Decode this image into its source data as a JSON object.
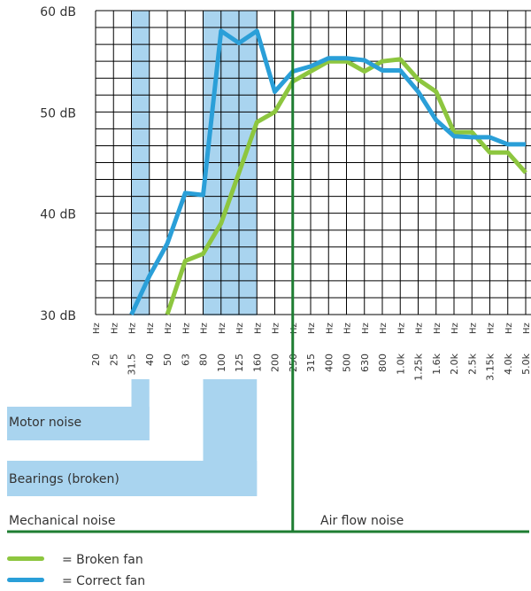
{
  "chart_data": {
    "type": "line",
    "x": [
      "20",
      "25",
      "31.5",
      "40",
      "50",
      "63",
      "80",
      "100",
      "125",
      "160",
      "200",
      "250",
      "315",
      "400",
      "500",
      "630",
      "800",
      "1.0k",
      "1.25k",
      "1.6k",
      "2.0k",
      "2.5k",
      "3.15k",
      "4.0k",
      "5.0k"
    ],
    "x_unit": "Hz",
    "ylim": [
      30,
      60
    ],
    "y_ticks": [
      {
        "value": 30,
        "label": "30 dB"
      },
      {
        "value": 40,
        "label": "40 dB"
      },
      {
        "value": 50,
        "label": "50 dB"
      },
      {
        "value": 60,
        "label": "60 dB"
      }
    ],
    "grid": true,
    "series": [
      {
        "name": "Broken fan",
        "color": "#8dc63f",
        "values": [
          null,
          null,
          null,
          null,
          30,
          35.3,
          36,
          39,
          44,
          49,
          50,
          53,
          54,
          55,
          55,
          54,
          55,
          55.2,
          53.2,
          52,
          48,
          48,
          46,
          46,
          44
        ]
      },
      {
        "name": "Correct fan",
        "color": "#2a9fd8",
        "values": [
          null,
          null,
          30,
          33.8,
          37,
          42,
          41.8,
          58,
          56.8,
          58,
          52,
          54,
          54.5,
          55.3,
          55.3,
          55.1,
          54.1,
          54.1,
          52,
          49.2,
          47.6,
          47.5,
          47.5,
          46.8,
          46.8
        ]
      }
    ],
    "divider_after": "250"
  },
  "bands": {
    "motor": {
      "label": "Motor noise",
      "x": [
        "40"
      ]
    },
    "bearings": {
      "label": "Bearings (broken)",
      "x": [
        "100",
        "125",
        "160"
      ]
    }
  },
  "sections": {
    "mechanical": "Mechanical noise",
    "airflow": "Air flow noise"
  },
  "legend": {
    "broken": "= Broken fan",
    "correct": "= Correct fan"
  },
  "colors": {
    "broken": "#8dc63f",
    "correct": "#2a9fd8",
    "band": "#a9d4ef",
    "divider": "#1e7d32",
    "grid": "#000000"
  }
}
